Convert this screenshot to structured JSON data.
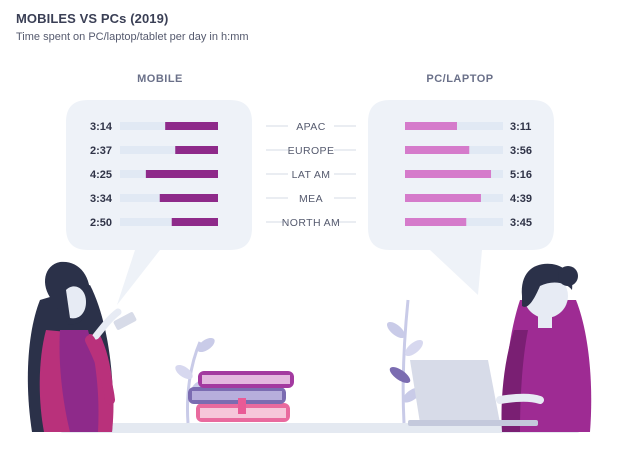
{
  "title": "MOBILES VS PCs (2019)",
  "subtitle": "Time spent on PC/laptop/tablet per day in h:mm",
  "colors": {
    "mobile_bar": "#8e2a8a",
    "pc_bar": "#d57bcb",
    "track": "#e1e9f4",
    "bubble": "#eef2f8"
  },
  "chart_data": {
    "type": "bar",
    "categories": [
      "APAC",
      "EUROPE",
      "LAT AM",
      "MEA",
      "NORTH AM"
    ],
    "unit": "h:mm",
    "series": [
      {
        "name": "MOBILE",
        "labels": [
          "3:14",
          "2:37",
          "4:25",
          "3:34",
          "2:50"
        ],
        "values_hours": [
          3.233,
          2.617,
          4.417,
          3.567,
          2.833
        ]
      },
      {
        "name": "PC/LAPTOP",
        "labels": [
          "3:11",
          "3:56",
          "5:16",
          "4:39",
          "3:45"
        ],
        "values_hours": [
          3.183,
          3.933,
          5.267,
          4.65,
          3.75
        ]
      }
    ],
    "xlim_hours": [
      0,
      6
    ]
  }
}
